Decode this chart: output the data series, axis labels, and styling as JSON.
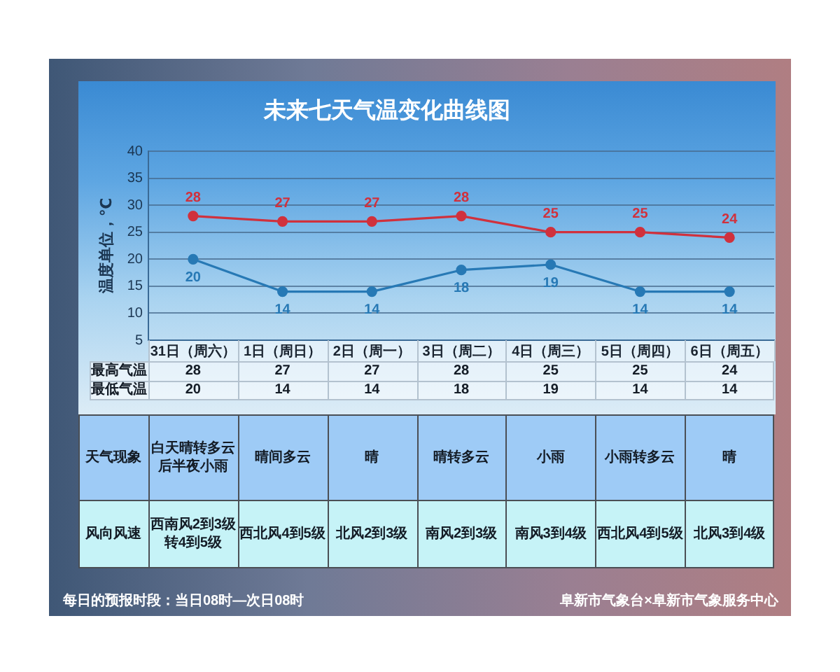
{
  "chart_data": {
    "type": "line",
    "title": "未来七天气温变化曲线图",
    "ylabel": "温度单位，℃",
    "categories": [
      "31日（周六）",
      "1日（周日）",
      "2日（周一）",
      "3日（周二）",
      "4日（周三）",
      "5日（周四）",
      "6日（周五）"
    ],
    "series": [
      {
        "color": "#d0313d",
        "values": [
          28,
          27,
          27,
          28,
          25,
          25,
          24
        ]
      },
      {
        "color": "#2779b5",
        "values": [
          20,
          14,
          14,
          18,
          19,
          14,
          14
        ]
      }
    ],
    "ylim": [
      5,
      40
    ],
    "yticks": [
      5,
      10,
      15,
      20,
      25,
      30,
      35,
      40
    ],
    "grid": "y",
    "legend": false,
    "marker": "circle",
    "line_style": "solid",
    "data_labels": true,
    "annotations": [
      "最高气温",
      "28",
      "27",
      "27",
      "28",
      "25",
      "25",
      "24",
      "最低气温",
      "20",
      "14",
      "14",
      "18",
      "19",
      "14",
      "14",
      "天气现象",
      "白天晴转多云后半夜小雨",
      "晴间多云",
      "晴",
      "晴转多云",
      "小雨",
      "小雨转多云",
      "晴",
      "风向风速",
      "西南风2到3级转4到5级",
      "西北风4到5级",
      "北风2到3级",
      "南风2到3级",
      "南风3到4级",
      "西北风4到5级",
      "北风3到4级",
      "每日的预报时段：当日08时—次日08时",
      "阜新市气象台×阜新市气象服务中心"
    ]
  }
}
